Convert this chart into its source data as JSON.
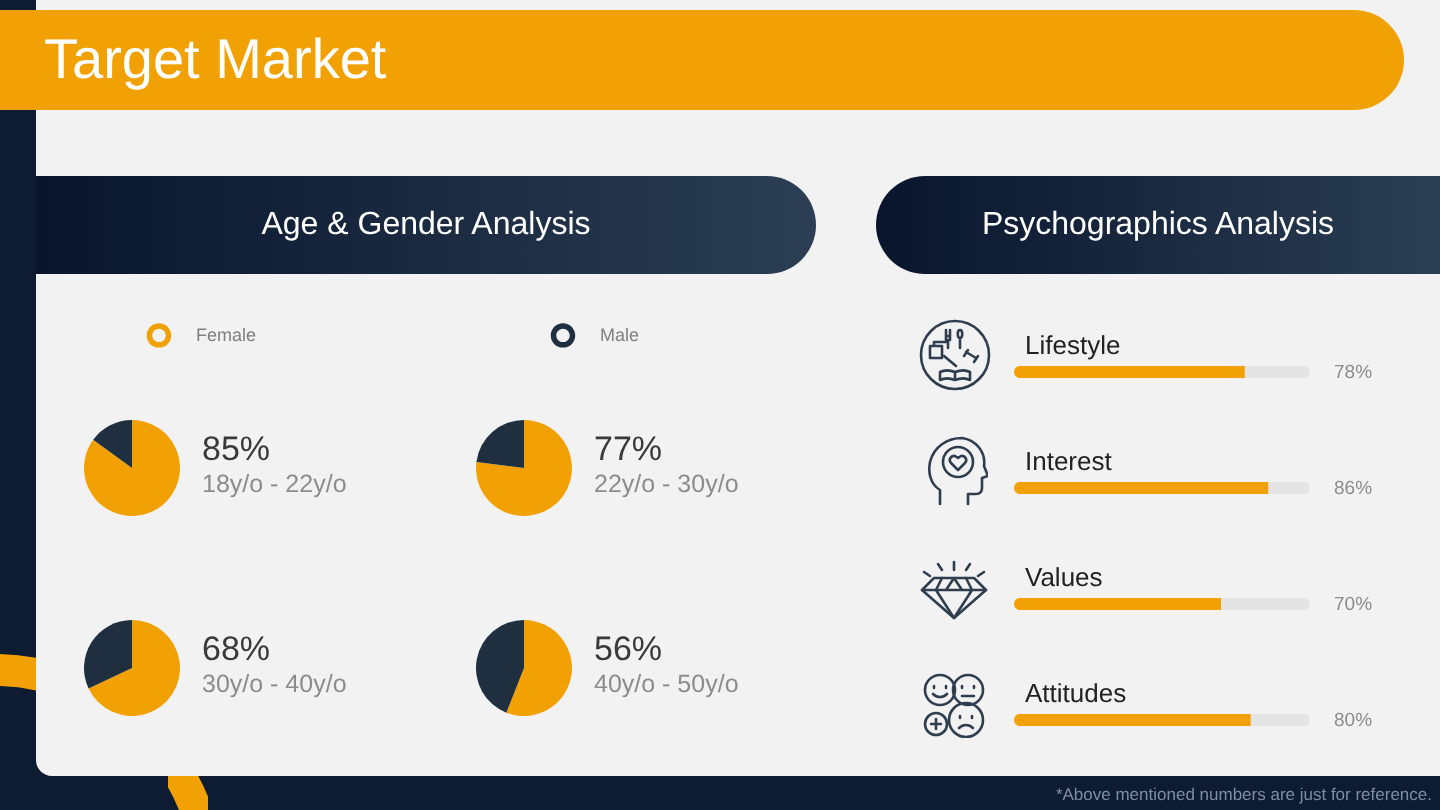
{
  "chart_data": [
    {
      "type": "other",
      "title": "Target Market"
    },
    {
      "type": "other",
      "title": "Age & Gender Analysis"
    },
    {
      "type": "pie",
      "title": "18y/o - 22y/o",
      "categories": [
        "Female",
        "Male"
      ],
      "values": [
        85,
        15
      ],
      "colors": [
        "#f2a104",
        "#1f2f40"
      ],
      "value_labels": [
        "85%",
        null
      ],
      "legend": "top"
    },
    {
      "type": "pie",
      "title": "22y/o - 30y/o",
      "categories": [
        null,
        null
      ],
      "values": [
        77,
        23
      ],
      "colors": [
        "#f2a104",
        "#1f2f40"
      ],
      "value_labels": [
        "77%",
        null
      ]
    },
    {
      "type": "pie",
      "title": "30y/o - 40y/o",
      "categories": [
        null,
        null
      ],
      "values": [
        68,
        32
      ],
      "colors": [
        "#f2a104",
        "#1f2f40"
      ],
      "value_labels": [
        "68%",
        null
      ]
    },
    {
      "type": "pie",
      "title": "40y/o - 50y/o",
      "categories": [
        null,
        null
      ],
      "values": [
        56,
        44
      ],
      "colors": [
        "#f2a104",
        "#1f2f40"
      ],
      "value_labels": [
        "56%",
        null
      ]
    },
    {
      "type": "bar",
      "title": "Psychographics Analysis",
      "orientation": "horizontal",
      "stacked": true,
      "categories": [
        "Lifestyle",
        "Interest",
        "Values",
        "Attitudes"
      ],
      "series": [
        {
          "color": "#f2a104",
          "values": [
            78,
            86,
            70,
            80
          ],
          "value_labels": [
            "78%",
            "86%",
            "70%",
            "80%"
          ]
        },
        {
          "color": "#e4e4e4",
          "values": [
            22,
            14,
            30,
            20
          ]
        }
      ],
      "xlim": [
        0,
        100
      ],
      "tick_labels": "y",
      "annotations": [
        "*Above mentioned numbers are just for reference."
      ]
    }
  ]
}
